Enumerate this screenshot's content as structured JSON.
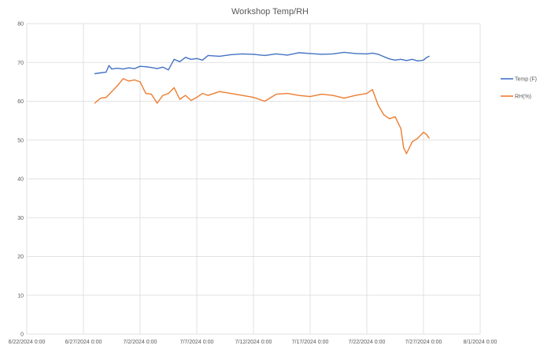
{
  "chart_data": {
    "type": "line",
    "title": "Workshop Temp/RH",
    "xlabel": "",
    "ylabel": "",
    "x_ticks": [
      "6/22/2024 0:00",
      "6/27/2024 0:00",
      "7/2/2024 0:00",
      "7/7/2024 0:00",
      "7/12/2024 0:00",
      "7/17/2024 0:00",
      "7/22/2024 0:00",
      "7/27/2024 0:00",
      "8/1/2024 0:00"
    ],
    "y_ticks": [
      0,
      10,
      20,
      30,
      40,
      50,
      60,
      70,
      80
    ],
    "ylim": [
      0,
      80
    ],
    "xlim": [
      "6/22/2024",
      "8/1/2024"
    ],
    "grid": true,
    "legend_position": "right",
    "colors": {
      "temp": "#4472C4",
      "rh": "#ED7D31",
      "grid": "#d9d9d9"
    },
    "series": [
      {
        "name": "Temp (F)",
        "x": [
          "6/28/2024 0:00",
          "6/28/2024 12:00",
          "6/29/2024 0:00",
          "6/29/2024 6:00",
          "6/29/2024 12:00",
          "6/30/2024 0:00",
          "6/30/2024 12:00",
          "7/1/2024 0:00",
          "7/1/2024 12:00",
          "7/2/2024 0:00",
          "7/2/2024 12:00",
          "7/3/2024 0:00",
          "7/3/2024 12:00",
          "7/4/2024 0:00",
          "7/4/2024 12:00",
          "7/5/2024 0:00",
          "7/5/2024 12:00",
          "7/6/2024 0:00",
          "7/6/2024 12:00",
          "7/7/2024 0:00",
          "7/7/2024 12:00",
          "7/8/2024 0:00",
          "7/9/2024 0:00",
          "7/10/2024 0:00",
          "7/11/2024 0:00",
          "7/12/2024 0:00",
          "7/13/2024 0:00",
          "7/14/2024 0:00",
          "7/15/2024 0:00",
          "7/16/2024 0:00",
          "7/17/2024 0:00",
          "7/18/2024 0:00",
          "7/19/2024 0:00",
          "7/20/2024 0:00",
          "7/21/2024 0:00",
          "7/22/2024 0:00",
          "7/22/2024 12:00",
          "7/23/2024 0:00",
          "7/23/2024 12:00",
          "7/24/2024 0:00",
          "7/24/2024 12:00",
          "7/25/2024 0:00",
          "7/25/2024 12:00",
          "7/26/2024 0:00",
          "7/26/2024 12:00",
          "7/27/2024 0:00",
          "7/27/2024 6:00",
          "7/27/2024 12:00"
        ],
        "values": [
          67.1,
          67.3,
          67.5,
          69.2,
          68.3,
          68.5,
          68.3,
          68.6,
          68.4,
          69.0,
          68.9,
          68.7,
          68.4,
          68.8,
          68.1,
          70.8,
          70.2,
          71.3,
          70.8,
          71.0,
          70.6,
          71.8,
          71.6,
          72.0,
          72.2,
          72.1,
          71.8,
          72.2,
          71.9,
          72.5,
          72.3,
          72.1,
          72.2,
          72.6,
          72.3,
          72.2,
          72.4,
          72.1,
          71.5,
          70.9,
          70.6,
          70.8,
          70.5,
          70.8,
          70.4,
          70.6,
          71.2,
          71.6
        ]
      },
      {
        "name": "RH(%)",
        "x": [
          "6/28/2024 0:00",
          "6/28/2024 12:00",
          "6/29/2024 0:00",
          "6/29/2024 12:00",
          "6/30/2024 0:00",
          "6/30/2024 12:00",
          "7/1/2024 0:00",
          "7/1/2024 12:00",
          "7/2/2024 0:00",
          "7/2/2024 12:00",
          "7/3/2024 0:00",
          "7/3/2024 12:00",
          "7/4/2024 0:00",
          "7/4/2024 12:00",
          "7/5/2024 0:00",
          "7/5/2024 12:00",
          "7/6/2024 0:00",
          "7/6/2024 12:00",
          "7/7/2024 0:00",
          "7/7/2024 12:00",
          "7/8/2024 0:00",
          "7/9/2024 0:00",
          "7/10/2024 0:00",
          "7/11/2024 0:00",
          "7/12/2024 0:00",
          "7/13/2024 0:00",
          "7/14/2024 0:00",
          "7/15/2024 0:00",
          "7/16/2024 0:00",
          "7/17/2024 0:00",
          "7/18/2024 0:00",
          "7/19/2024 0:00",
          "7/20/2024 0:00",
          "7/21/2024 0:00",
          "7/22/2024 0:00",
          "7/22/2024 12:00",
          "7/23/2024 0:00",
          "7/23/2024 12:00",
          "7/24/2024 0:00",
          "7/24/2024 12:00",
          "7/25/2024 0:00",
          "7/25/2024 6:00",
          "7/25/2024 12:00",
          "7/26/2024 0:00",
          "7/26/2024 12:00",
          "7/27/2024 0:00",
          "7/27/2024 6:00",
          "7/27/2024 12:00"
        ],
        "values": [
          59.5,
          60.8,
          61.0,
          62.5,
          64.0,
          65.8,
          65.2,
          65.5,
          65.0,
          62.0,
          61.8,
          59.5,
          61.5,
          62.0,
          63.5,
          60.5,
          61.5,
          60.2,
          61.0,
          62.0,
          61.5,
          62.5,
          62.0,
          61.5,
          61.0,
          60.0,
          61.8,
          62.0,
          61.5,
          61.2,
          61.8,
          61.5,
          60.8,
          61.5,
          62.0,
          63.0,
          59.0,
          56.5,
          55.5,
          56.0,
          53.0,
          48.0,
          46.5,
          49.5,
          50.5,
          52.0,
          51.5,
          50.5
        ]
      }
    ]
  }
}
